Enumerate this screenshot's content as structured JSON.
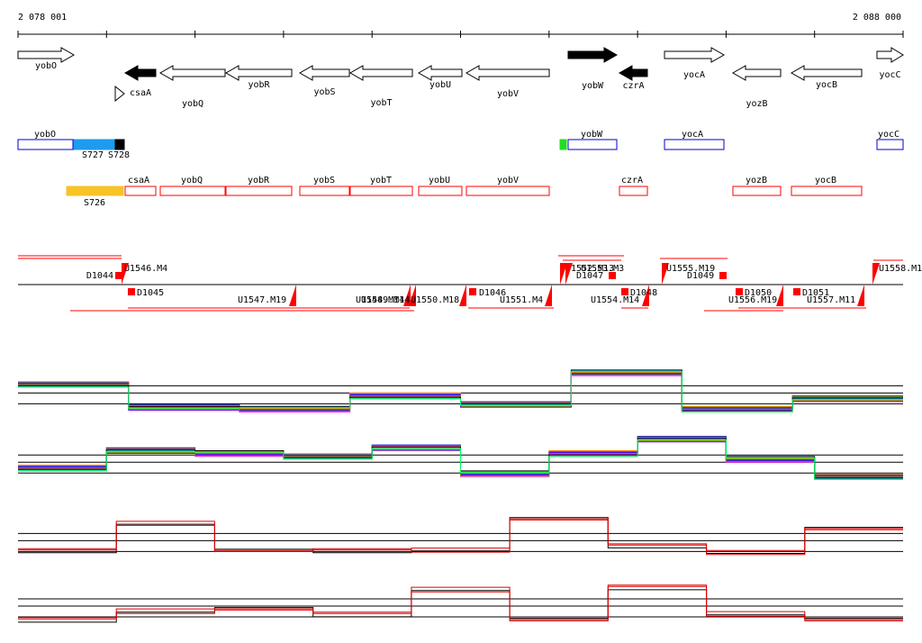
{
  "coordinates": {
    "start": "2 078 001",
    "end": "2 088 000"
  },
  "colors": {
    "outline": "#000000",
    "filled_gene": "#000000",
    "promoter": "#ff0000",
    "region_box": "#ff0000",
    "utr_box": "#0000cc",
    "s727": "#1e9af0",
    "s728": "#000000",
    "s726": "#f7c325",
    "ywb_marker": "#22dd22",
    "baseline": "#000000"
  },
  "genes": [
    {
      "name": "yobO",
      "strand": "+",
      "filled": false
    },
    {
      "name": "csaA",
      "strand": "-",
      "filled": true
    },
    {
      "name": "yobQ",
      "strand": "-",
      "filled": false
    },
    {
      "name": "yobR",
      "strand": "-",
      "filled": false
    },
    {
      "name": "yobS",
      "strand": "-",
      "filled": false
    },
    {
      "name": "yobT",
      "strand": "-",
      "filled": false
    },
    {
      "name": "yobU",
      "strand": "-",
      "filled": false
    },
    {
      "name": "yobV",
      "strand": "-",
      "filled": false
    },
    {
      "name": "yobW",
      "strand": "+",
      "filled": true
    },
    {
      "name": "czrA",
      "strand": "-",
      "filled": true
    },
    {
      "name": "yocA",
      "strand": "+",
      "filled": false
    },
    {
      "name": "yozB",
      "strand": "-",
      "filled": false
    },
    {
      "name": "yocB",
      "strand": "-",
      "filled": false
    },
    {
      "name": "yocC",
      "strand": "+",
      "filled": false
    }
  ],
  "plus_regions": [
    {
      "label": "yobO",
      "kind": "utr"
    },
    {
      "label": "S727",
      "kind": "s727"
    },
    {
      "label": "S728",
      "kind": "s728"
    },
    {
      "label": "",
      "kind": "ywb_marker"
    },
    {
      "label": "yobW",
      "kind": "utr"
    },
    {
      "label": "yocA",
      "kind": "utr"
    },
    {
      "label": "yocC",
      "kind": "utr"
    }
  ],
  "minus_regions": [
    {
      "label": "S726",
      "kind": "s726"
    },
    {
      "label": "csaA",
      "kind": "box"
    },
    {
      "label": "yobQ",
      "kind": "box"
    },
    {
      "label": "yobR",
      "kind": "box"
    },
    {
      "label": "yobS",
      "kind": "box"
    },
    {
      "label": "yobT",
      "kind": "box"
    },
    {
      "label": "yobU",
      "kind": "box"
    },
    {
      "label": "yobV",
      "kind": "box"
    },
    {
      "label": "czrA",
      "kind": "box"
    },
    {
      "label": "yozB",
      "kind": "box"
    },
    {
      "label": "yocB",
      "kind": "box"
    }
  ],
  "promoters_top": [
    {
      "label": "D1044"
    },
    {
      "label": "U1546.M4"
    },
    {
      "label": "U1552.M13"
    },
    {
      "label": "D1047"
    },
    {
      "label": "U1553.M3"
    },
    {
      "label": "U1555.M19"
    },
    {
      "label": "D1049"
    },
    {
      "label": "U1558.M1"
    }
  ],
  "promoters_bottom": [
    {
      "label": "D1045"
    },
    {
      "label": "U1547.M19"
    },
    {
      "label": "U1548.M14"
    },
    {
      "label": "U1549.M14"
    },
    {
      "label": "U1550.M18"
    },
    {
      "label": "D1046"
    },
    {
      "label": "U1551.M4"
    },
    {
      "label": "U1554.M14"
    },
    {
      "label": "D1048"
    },
    {
      "label": "D1050"
    },
    {
      "label": "U1556.M19"
    },
    {
      "label": "D1051"
    },
    {
      "label": "U1557.M11"
    }
  ],
  "expression_tracks": [
    {
      "name": "plus-strand-all-conditions",
      "baseline": 0.4,
      "segments": [
        0.55,
        0.15,
        0.12,
        0.35,
        0.2,
        0.75,
        0.12,
        0.3
      ]
    },
    {
      "name": "minus-strand-all-conditions",
      "baseline": 0.45,
      "segments": [
        0.35,
        0.65,
        0.6,
        0.55,
        0.7,
        0.25,
        0.6,
        0.85,
        0.5,
        0.2
      ]
    },
    {
      "name": "plus-strand-selected",
      "baseline": 0.4,
      "segments": [
        0.2,
        0.75,
        0.2,
        0.2,
        0.2,
        0.85,
        0.3,
        0.15,
        0.65
      ]
    },
    {
      "name": "minus-strand-selected",
      "baseline": 0.45,
      "segments": [
        0.2,
        0.35,
        0.4,
        0.3,
        0.75,
        0.2,
        0.8,
        0.3,
        0.2
      ]
    }
  ]
}
